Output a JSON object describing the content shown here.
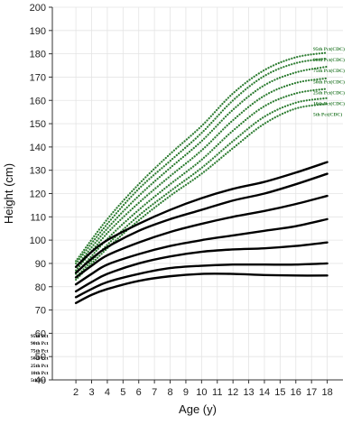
{
  "chart_data": {
    "type": "line",
    "title": "",
    "xlabel": "Age (y)",
    "ylabel": "Height (cm)",
    "xlim": [
      0.5,
      19
    ],
    "ylim": [
      40,
      200
    ],
    "x_ticks": [
      2,
      3,
      4,
      5,
      6,
      7,
      8,
      9,
      10,
      11,
      12,
      13,
      14,
      15,
      16,
      17,
      18
    ],
    "x_tick_labels": [
      "2",
      "3",
      "4",
      "5",
      "6",
      "7",
      "8",
      "9",
      "10",
      "11",
      "12",
      "13",
      "14",
      "15",
      "16",
      "17",
      "18"
    ],
    "y_ticks": [
      40,
      50,
      60,
      70,
      80,
      90,
      100,
      110,
      120,
      130,
      140,
      150,
      160,
      170,
      180,
      190,
      200
    ],
    "y_tick_labels": [
      "40",
      "50",
      "60",
      "70",
      "80",
      "90",
      "100",
      "110",
      "120",
      "130",
      "140",
      "150",
      "160",
      "170",
      "180",
      "190",
      "200"
    ],
    "grid": true,
    "series": [
      {
        "name": "95th Pct",
        "group": "study",
        "color": "#000000",
        "style": "solid",
        "x": [
          2,
          3,
          4,
          6,
          8,
          10,
          12,
          14,
          16,
          18
        ],
        "y": [
          88.5,
          95,
          100,
          107,
          113,
          118,
          122,
          125,
          129,
          133.5
        ]
      },
      {
        "name": "90th Pct",
        "group": "study",
        "color": "#000000",
        "style": "solid",
        "x": [
          2,
          3,
          4,
          6,
          8,
          10,
          12,
          14,
          16,
          18
        ],
        "y": [
          86,
          92,
          97,
          104,
          109,
          113,
          117,
          120,
          124,
          128.5
        ]
      },
      {
        "name": "75th Pct",
        "group": "study",
        "color": "#000000",
        "style": "solid",
        "x": [
          2,
          3,
          4,
          6,
          8,
          10,
          12,
          14,
          16,
          18
        ],
        "y": [
          84,
          89,
          93.5,
          99,
          103.5,
          107,
          110,
          112.5,
          115.5,
          119
        ]
      },
      {
        "name": "50th Pct",
        "group": "study",
        "color": "#000000",
        "style": "solid",
        "x": [
          2,
          3,
          4,
          6,
          8,
          10,
          12,
          14,
          16,
          18
        ],
        "y": [
          81,
          85.5,
          89.5,
          94,
          97.5,
          100,
          102,
          104,
          106,
          109
        ]
      },
      {
        "name": "25th Pct",
        "group": "study",
        "color": "#000000",
        "style": "solid",
        "x": [
          2,
          3,
          4,
          6,
          8,
          10,
          12,
          14,
          16,
          18
        ],
        "y": [
          78,
          82,
          85.5,
          90,
          93,
          95,
          96,
          96.5,
          97.5,
          99
        ]
      },
      {
        "name": "10th Pct",
        "group": "study",
        "color": "#000000",
        "style": "solid",
        "x": [
          2,
          3,
          4,
          6,
          8,
          10,
          12,
          14,
          16,
          18
        ],
        "y": [
          75.5,
          79,
          82,
          85.5,
          88,
          89,
          89.5,
          89.5,
          89.5,
          90
        ]
      },
      {
        "name": "5th Pct",
        "group": "study",
        "color": "#000000",
        "style": "solid",
        "x": [
          2,
          3,
          4,
          6,
          8,
          10,
          12,
          14,
          16,
          18
        ],
        "y": [
          73,
          76.5,
          79,
          82.5,
          84.5,
          85.5,
          85.5,
          85,
          84.8,
          84.8
        ]
      },
      {
        "name": "95th Pct(CDC)",
        "group": "cdc",
        "color": "#2e7d32",
        "style": "dotted",
        "x": [
          2,
          4,
          6,
          8,
          10,
          12,
          14,
          16,
          18
        ],
        "y": [
          91,
          109,
          124,
          137,
          149,
          163,
          173,
          178.5,
          180.5
        ]
      },
      {
        "name": "90th Pct(CDC)",
        "group": "cdc",
        "color": "#2e7d32",
        "style": "dotted",
        "x": [
          2,
          4,
          6,
          8,
          10,
          12,
          14,
          16,
          18
        ],
        "y": [
          90,
          107,
          122,
          134,
          146,
          160,
          170.5,
          176,
          178
        ]
      },
      {
        "name": "75th Pct(CDC)",
        "group": "cdc",
        "color": "#2e7d32",
        "style": "dotted",
        "x": [
          2,
          4,
          6,
          8,
          10,
          12,
          14,
          16,
          18
        ],
        "y": [
          88.5,
          105,
          119,
          131,
          142.5,
          156,
          166.5,
          172,
          174.5
        ]
      },
      {
        "name": "50th Pct(CDC)",
        "group": "cdc",
        "color": "#2e7d32",
        "style": "dotted",
        "x": [
          2,
          4,
          6,
          8,
          10,
          12,
          14,
          16,
          18
        ],
        "y": [
          87,
          103,
          116,
          127.5,
          138.5,
          151.5,
          162,
          167.5,
          169.5
        ]
      },
      {
        "name": "25th Pct(CDC)",
        "group": "cdc",
        "color": "#2e7d32",
        "style": "dotted",
        "x": [
          2,
          4,
          6,
          8,
          10,
          12,
          14,
          16,
          18
        ],
        "y": [
          85.5,
          100.5,
          113,
          124,
          134.5,
          147,
          157.5,
          163,
          165
        ]
      },
      {
        "name": "10th Pct(CDC)",
        "group": "cdc",
        "color": "#2e7d32",
        "style": "dotted",
        "x": [
          2,
          4,
          6,
          8,
          10,
          12,
          14,
          16,
          18
        ],
        "y": [
          84,
          98,
          110.5,
          121,
          131,
          142.5,
          153,
          159,
          161
        ]
      },
      {
        "name": "5th Pct(CDC)",
        "group": "cdc",
        "color": "#2e7d32",
        "style": "dotted",
        "x": [
          2,
          4,
          6,
          8,
          10,
          12,
          14,
          16,
          18
        ],
        "y": [
          83,
          96.5,
          108.5,
          119,
          128.5,
          139.5,
          150,
          156.5,
          158.5
        ]
      }
    ]
  }
}
